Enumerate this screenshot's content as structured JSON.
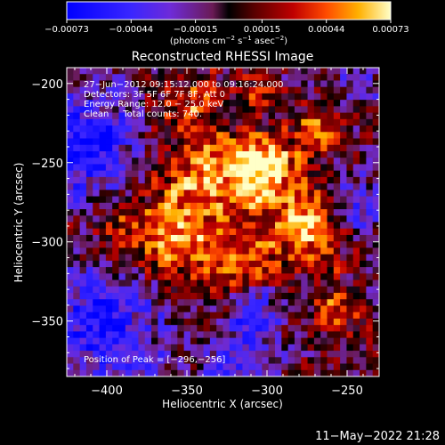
{
  "chart_data": {
    "type": "heatmap",
    "title": "Reconstructed RHESSI Image",
    "xlabel": "Heliocentric X (arcsec)",
    "ylabel": "Heliocentric Y (arcsec)",
    "xlim": [
      -425,
      -230
    ],
    "ylim": [
      -385,
      -190
    ],
    "x_ticks": [
      -400,
      -350,
      -300,
      -250
    ],
    "x_tick_labels": [
      "−400",
      "−350",
      "−300",
      "−250"
    ],
    "y_ticks": [
      -200,
      -250,
      -300,
      -350
    ],
    "y_tick_labels": [
      "−200",
      "−250",
      "−300",
      "−350"
    ],
    "colorbar": {
      "min": -0.00073,
      "max": 0.00073,
      "ticks": [
        -0.00073,
        -0.00044,
        -0.00015,
        0.00015,
        0.00044,
        0.00073
      ],
      "tick_labels": [
        "−0.00073",
        "−0.00044",
        "−0.00015",
        "0.00015",
        "0.00044",
        "0.00073"
      ],
      "unit_label": "(photons cm",
      "unit_exp1": "−2",
      "unit_mid": " s",
      "unit_exp2": "−1",
      "unit_end": " asec",
      "unit_exp3": "−2",
      "unit_close": ")"
    },
    "annotations": [
      "27−Jun−2012 09:15:12.000 to 09:16:24.000",
      "Detectors: 3F 5F 6F 7F 8F, Att 0",
      "Energy Range: 12.0 − 25.0 keV",
      "Clean     Total counts: 740."
    ],
    "peak_label": "Position of Peak = [−296,−256]",
    "peak": [
      -296,
      -256
    ],
    "timestamp": "11−May−2022 21:28",
    "grid": false
  },
  "colors": {
    "background": "#000000",
    "text": "#ffffff"
  }
}
